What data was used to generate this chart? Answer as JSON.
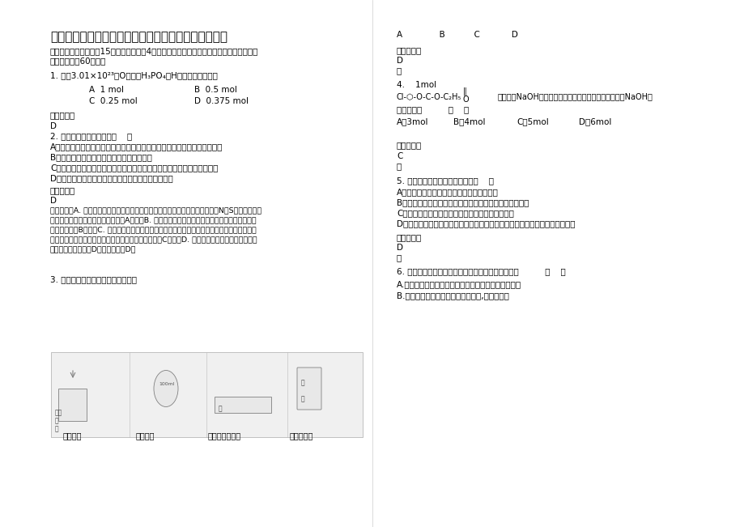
{
  "bg_color": "#ffffff",
  "title": "湖南省岳阳市黄金洞巨能学校高二化学联考试卷含解析",
  "section1": "一、单选题（本大题共15个小题，每小题4分。在每小题给出的四个选项中，只有一项符合\n题目要求，共60分。）",
  "q1": "1. 含有3.01×10²³个O原子的H₃PO₄中H原子的物质的量为",
  "q1_opts": [
    "A  1 mol",
    "B  0.5 mol",
    "C  0.25 mol",
    "D  0.375 mol"
  ],
  "q1_ans_label": "参考答案：",
  "q1_ans": "D",
  "q2": "2. 下列有关叙述正确的是（    ）",
  "q2_opts": [
    "A．糖、油脂、蛋白质和纤维素都由碳、氢、氧元素组成，都是高分子化合物",
    "B．糖、油脂、蛋白质和纤维素都能发生水解",
    "C．葡萄糖和果糖、麦芽糖和蔗糖、淀粉和纤维素，它们间互为同分异构体",
    "D．重金属盐能使蛋白质凝结，故误食重金属盐会中毒"
  ],
  "q2_ans_label": "参考答案：",
  "q2_ans": "D",
  "q2_analysis": "试题分析：A. 糖、油脂和纤维素都由碳、氢、氧元素组成，蛋白质分子中还含有N和S等元素。其中\n纤维素和蛋白质都是高分子化合物。A错误；B. 油脂、蛋白质和纤维素都能发生水解，单糖不能发\n生水解反应。B错误；C. 葡萄糖和果糖、麦芽糖和蔗糖，它们间互为同分异构体，淀粉和纤维素均\n是高分子化合物，都是混合物，不能互为同分异构体。C错误；D. 重金属盐能使蛋白质凝结，故误\n食重金属盐会中毒。D正确。答案选D。",
  "q3": "3. 下列有关实验原理或操作正确的是",
  "q3_labels": [
    "喷泉实验",
    "转移溶液",
    "收集氯化氢气体",
    "分离苯和水"
  ],
  "q3_right_abcd": "A              B           C            D",
  "q3_ans_label_right": "参考答案：",
  "q3_ans_right": "D",
  "q3_lue": "略",
  "q4_label": "4.    1mol",
  "q4_question": "物质的量是          （    ）",
  "q4_opts": [
    "A．3mol",
    "B．4mol",
    "C．5mol",
    "D．6mol"
  ],
  "q4_ans_label": "参考答案：",
  "q4_ans": "C",
  "q4_lue": "略",
  "q5": "5. 下列关于钠的说法不正确的是（    ）",
  "q5_opts": [
    "A．金属钠和氧气反应，条件不同，产物不同",
    "B．钠钾合金通常状况下呈液态，可作原子反应堆的导热剂",
    "C．钠的化学活泼性很强，少量的钠可保存在煤油中",
    "D．由于钠比较活泼，所以它能从溶液中置换出金属活动顺序表中钠后面的金属"
  ],
  "q5_ans_label": "参考答案：",
  "q5_ans": "D",
  "q5_lue": "略",
  "q6": "6. 下列关于石油的炼制和石油化工的叙述不正确的是          （    ）",
  "q6_opts": [
    "A.石油的常压分馏、减压分馏和催化裂化都能得到柴油",
    "B.石油裂化的原料是石油分馏的产品,包括石油气"
  ]
}
